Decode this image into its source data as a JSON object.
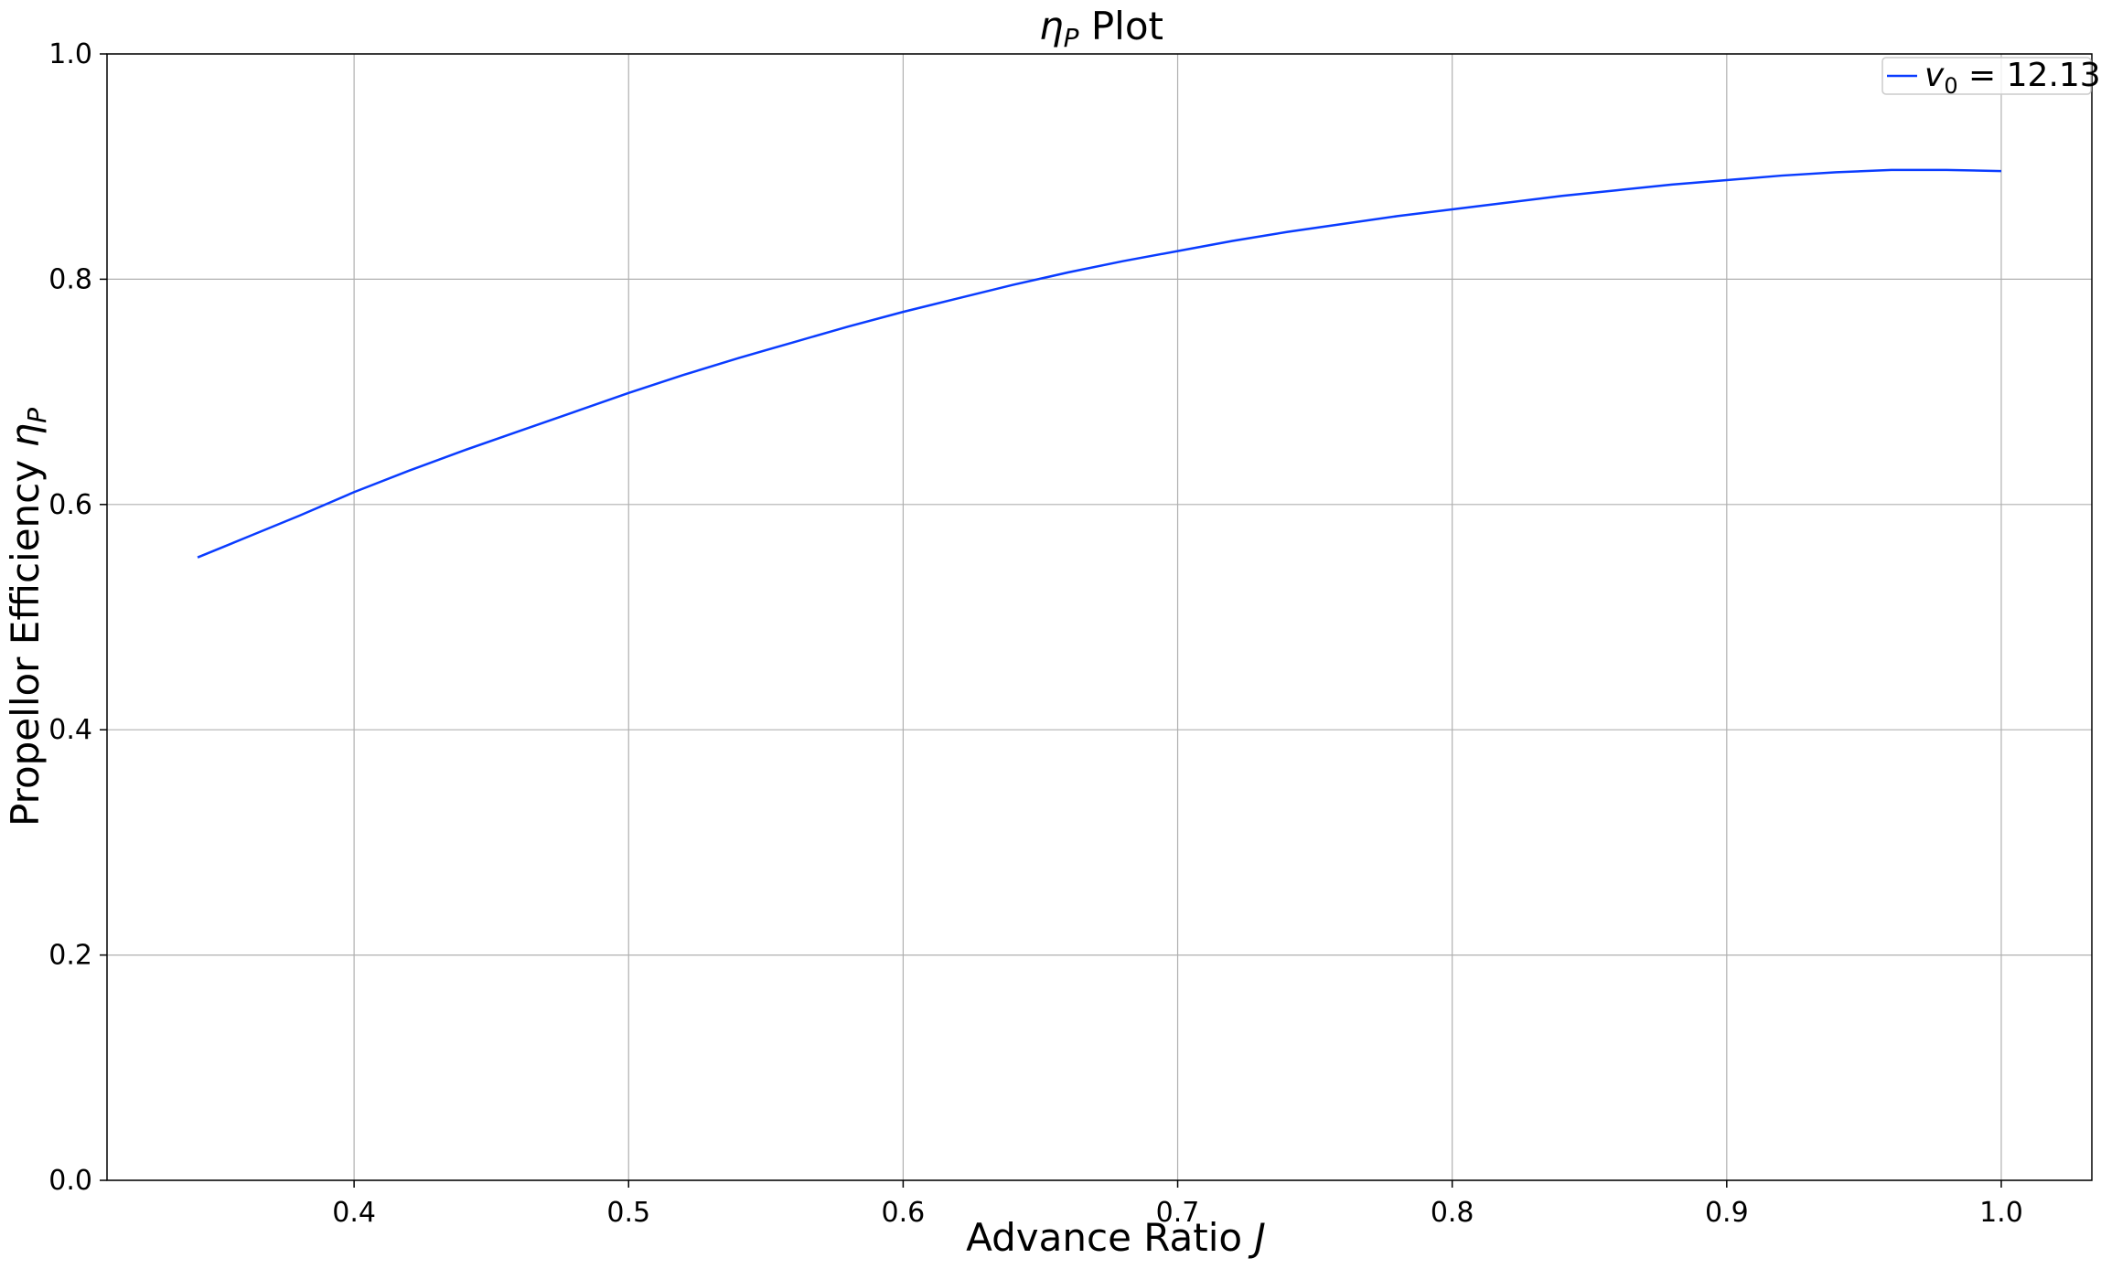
{
  "chart_data": {
    "type": "line",
    "title": {
      "symbol": "η",
      "subscript": "P",
      "text": "Plot"
    },
    "xlabel": {
      "text": "Advance Ratio",
      "symbol": "J"
    },
    "ylabel": {
      "text": "Propellor Efficiency",
      "symbol": "η",
      "subscript": "P"
    },
    "xlim": [
      0.31,
      1.033
    ],
    "ylim": [
      0.0,
      1.0
    ],
    "x_ticks": [
      "0.4",
      "0.5",
      "0.6",
      "0.7",
      "0.8",
      "0.9",
      "1.0"
    ],
    "y_ticks": [
      "0.0",
      "0.2",
      "0.4",
      "0.6",
      "0.8",
      "1.0"
    ],
    "grid": true,
    "legend_position": "top-right",
    "series": [
      {
        "legend": {
          "symbol": "v",
          "subscript": "0",
          "text": " = 12.13"
        },
        "color": "#0a3cff",
        "x": [
          0.343,
          0.36,
          0.38,
          0.4,
          0.42,
          0.44,
          0.46,
          0.48,
          0.5,
          0.52,
          0.54,
          0.56,
          0.58,
          0.6,
          0.62,
          0.64,
          0.66,
          0.68,
          0.7,
          0.72,
          0.74,
          0.76,
          0.78,
          0.8,
          0.82,
          0.84,
          0.86,
          0.88,
          0.9,
          0.92,
          0.94,
          0.96,
          0.98,
          1.0
        ],
        "y": [
          0.553,
          0.57,
          0.59,
          0.611,
          0.63,
          0.648,
          0.665,
          0.682,
          0.699,
          0.715,
          0.73,
          0.744,
          0.758,
          0.771,
          0.783,
          0.795,
          0.806,
          0.816,
          0.825,
          0.834,
          0.842,
          0.849,
          0.856,
          0.862,
          0.868,
          0.874,
          0.879,
          0.884,
          0.888,
          0.892,
          0.895,
          0.897,
          0.897,
          0.896
        ]
      }
    ]
  }
}
